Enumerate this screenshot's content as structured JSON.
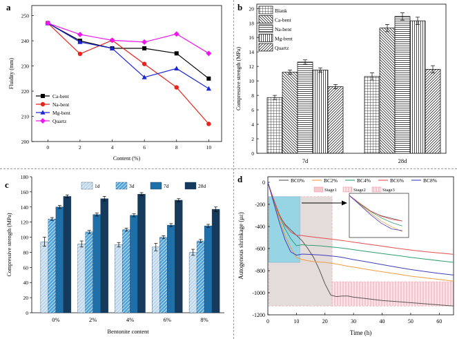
{
  "figure": {
    "dividers": true
  },
  "chart_data": [
    {
      "panel_label": "a",
      "type": "line",
      "xlabel": "Content (%)",
      "ylabel": "Fluidity (mm)",
      "x": [
        0,
        2,
        4,
        6,
        8,
        10
      ],
      "xticks": [
        "0",
        "2",
        "4",
        "6",
        "8",
        "10"
      ],
      "yticks": [
        "200",
        "210",
        "220",
        "230",
        "240",
        "250"
      ],
      "xlim": [
        -1,
        10.8
      ],
      "ylim": [
        200,
        254
      ],
      "legend_position": "bottom-left",
      "series": [
        {
          "name": "Ca-bent",
          "color": "#000000",
          "marker": "square",
          "values": [
            247,
            240,
            237,
            237,
            235,
            225
          ]
        },
        {
          "name": "Na-bent",
          "color": "#e8231b",
          "marker": "circle",
          "values": [
            247,
            234.8,
            240.2,
            230.8,
            221.5,
            207
          ]
        },
        {
          "name": "Mg-bent",
          "color": "#1d26d6",
          "marker": "triangle",
          "values": [
            247,
            239.5,
            237,
            225.5,
            229,
            221
          ]
        },
        {
          "name": "Quartz",
          "color": "#f016f0",
          "marker": "diamond",
          "values": [
            247,
            242.5,
            240.2,
            239.5,
            242.7,
            235
          ]
        }
      ]
    },
    {
      "panel_label": "b",
      "type": "bar",
      "ylabel": "Compressive strength (MPa)",
      "categories": [
        "7d",
        "28d"
      ],
      "yticks": [
        "0",
        "2",
        "4",
        "6",
        "8",
        "10",
        "12",
        "14",
        "16",
        "18",
        "20"
      ],
      "ylim": [
        0,
        20.6
      ],
      "legend_position": "top-left",
      "series": [
        {
          "name": "Blank",
          "pattern": "grid",
          "values": [
            7.7,
            10.6
          ],
          "errors": [
            0.3,
            0.5
          ]
        },
        {
          "name": "Ca-bent",
          "pattern": "backdiag",
          "values": [
            11.2,
            17.3
          ],
          "errors": [
            0.3,
            0.5
          ]
        },
        {
          "name": "Na-bent",
          "pattern": "hlines",
          "values": [
            12.6,
            18.9
          ],
          "errors": [
            0.3,
            0.5
          ]
        },
        {
          "name": "Mg-bent",
          "pattern": "vlines",
          "values": [
            11.5,
            18.3
          ],
          "errors": [
            0.3,
            0.5
          ]
        },
        {
          "name": "Quartz",
          "pattern": "fwddiag",
          "values": [
            9.2,
            11.6
          ],
          "errors": [
            0.3,
            0.5
          ]
        }
      ]
    },
    {
      "panel_label": "c",
      "type": "bar",
      "xlabel": "Bentonite content",
      "ylabel": "Compressive strength (MPa)",
      "categories": [
        "0%",
        "2%",
        "4%",
        "6%",
        "8%"
      ],
      "yticks": [
        "0",
        "20",
        "40",
        "60",
        "80",
        "100",
        "120",
        "140",
        "160",
        "180"
      ],
      "ylim": [
        0,
        180
      ],
      "legend_position": "top",
      "series": [
        {
          "name": "1d",
          "color": "#bdd7ee",
          "hatch": true,
          "values": [
            94,
            91,
            90,
            87,
            80
          ],
          "errors": [
            6,
            4,
            3,
            5,
            4
          ]
        },
        {
          "name": "3d",
          "color": "#4ea3de",
          "hatch": true,
          "values": [
            124,
            107,
            110,
            100,
            95
          ],
          "errors": [
            2,
            2,
            2,
            2,
            2
          ]
        },
        {
          "name": "7d",
          "color": "#1f6fa8",
          "hatch": false,
          "values": [
            140,
            130,
            129,
            116,
            115
          ],
          "errors": [
            2,
            2,
            2,
            2,
            2
          ]
        },
        {
          "name": "28d",
          "color": "#163a5c",
          "hatch": false,
          "values": [
            154,
            151,
            157,
            149,
            137
          ],
          "errors": [
            2,
            3,
            2,
            2,
            3
          ]
        }
      ]
    },
    {
      "panel_label": "d",
      "type": "line",
      "xlabel": "Time (h)",
      "ylabel": "Autogenous shrinkage (με)",
      "xticks": [
        "0",
        "10",
        "20",
        "30",
        "40",
        "50",
        "60"
      ],
      "yticks": [
        "0",
        "-200",
        "-400",
        "-600",
        "-800",
        "-1000",
        "-1200"
      ],
      "xlim": [
        0,
        65
      ],
      "ylim": [
        -1200,
        50
      ],
      "legend_position": "top",
      "series": [
        {
          "name": "BC0%",
          "color": "#555555",
          "x": [
            0,
            2,
            4,
            6,
            8,
            10,
            12,
            14,
            16,
            18,
            20,
            22,
            24,
            26,
            28,
            30,
            35,
            40,
            45,
            50,
            55,
            60,
            65
          ],
          "values": [
            0,
            -160,
            -300,
            -380,
            -430,
            -480,
            -530,
            -600,
            -680,
            -790,
            -920,
            -1020,
            -1035,
            -1030,
            -1030,
            -1040,
            -1055,
            -1070,
            -1080,
            -1090,
            -1100,
            -1110,
            -1120
          ]
        },
        {
          "name": "BC2%",
          "color": "#f39c3c",
          "x": [
            0,
            2,
            4,
            6,
            8,
            10,
            12,
            14,
            16,
            18,
            20,
            22,
            24,
            26,
            28,
            30,
            35,
            40,
            45,
            50,
            55,
            60,
            65
          ],
          "values": [
            0,
            -170,
            -330,
            -480,
            -590,
            -680,
            -700,
            -710,
            -718,
            -722,
            -726,
            -732,
            -740,
            -750,
            -760,
            -768,
            -790,
            -810,
            -830,
            -850,
            -865,
            -880,
            -895
          ]
        },
        {
          "name": "BC4%",
          "color": "#2e9e6e",
          "x": [
            0,
            2,
            4,
            6,
            8,
            10,
            12,
            14,
            16,
            18,
            20,
            22,
            24,
            26,
            28,
            30,
            35,
            40,
            45,
            50,
            55,
            60,
            65
          ],
          "values": [
            0,
            -160,
            -300,
            -420,
            -510,
            -575,
            -565,
            -570,
            -572,
            -575,
            -580,
            -585,
            -590,
            -596,
            -602,
            -610,
            -628,
            -645,
            -662,
            -680,
            -695,
            -710,
            -725
          ]
        },
        {
          "name": "BC6%",
          "color": "#e84d4d",
          "x": [
            0,
            2,
            4,
            6,
            8,
            10,
            12,
            14,
            16,
            18,
            20,
            22,
            24,
            26,
            28,
            30,
            35,
            40,
            45,
            50,
            55,
            60,
            65
          ],
          "values": [
            0,
            -150,
            -290,
            -390,
            -450,
            -480,
            -482,
            -490,
            -496,
            -502,
            -508,
            -514,
            -520,
            -527,
            -534,
            -542,
            -560,
            -578,
            -597,
            -613,
            -628,
            -640,
            -652
          ]
        },
        {
          "name": "BC8%",
          "color": "#3d3dbf",
          "x": [
            0,
            2,
            4,
            6,
            8,
            10,
            12,
            14,
            16,
            18,
            20,
            22,
            24,
            26,
            28,
            30,
            35,
            40,
            45,
            50,
            55,
            60,
            65
          ],
          "values": [
            0,
            -180,
            -360,
            -520,
            -630,
            -660,
            -650,
            -652,
            -655,
            -658,
            -662,
            -667,
            -672,
            -680,
            -690,
            -700,
            -722,
            -745,
            -768,
            -790,
            -808,
            -825,
            -840
          ]
        }
      ],
      "stages": [
        {
          "name": "Stage1",
          "color": "#7fd3e8",
          "x": [
            0.3,
            11.2
          ],
          "y": [
            -725,
            -130
          ]
        },
        {
          "name": "Stage2",
          "color": "#d8c8c8",
          "x": [
            0.3,
            22.5
          ],
          "y": [
            -1120,
            -130
          ]
        },
        {
          "name": "Stage3",
          "color": "#f2a8b4",
          "x": [
            22.5,
            65
          ],
          "y": [
            -1120,
            -900
          ]
        }
      ],
      "inset": true
    }
  ]
}
